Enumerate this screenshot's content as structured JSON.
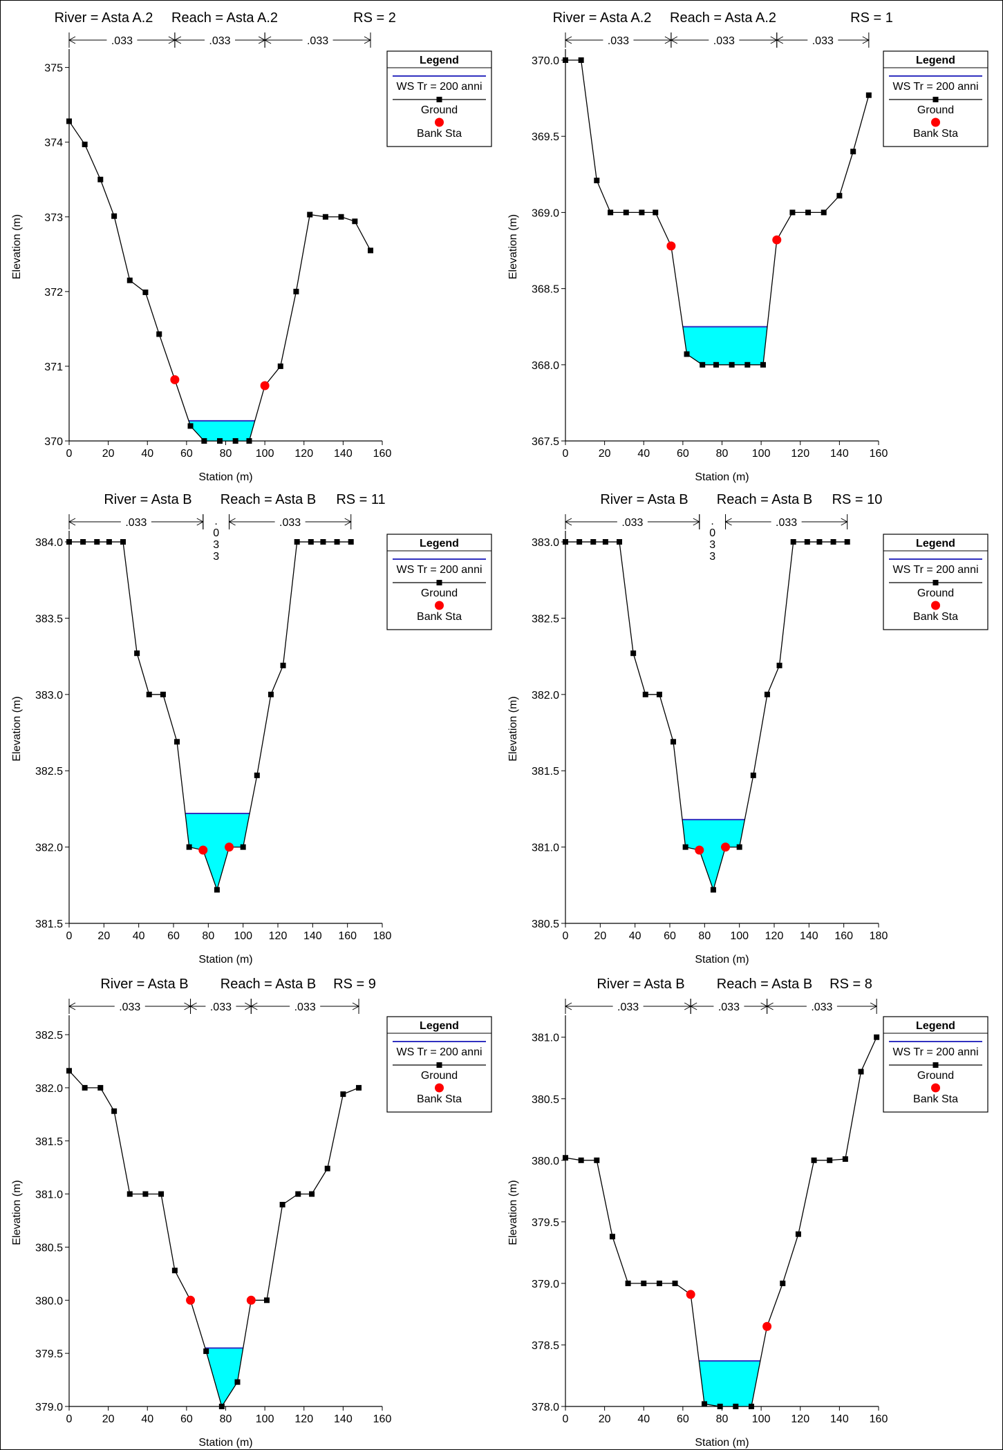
{
  "legend": {
    "title": "Legend",
    "items": [
      {
        "label": "WS Tr = 200 anni",
        "kind": "line",
        "color": "#3030c0"
      },
      {
        "label": "Ground",
        "kind": "line-marker",
        "color": "#000000"
      },
      {
        "label": "Bank Sta",
        "kind": "dot",
        "color": "#ff0000"
      }
    ]
  },
  "colors": {
    "water": "#00ffff",
    "ws_line": "#3030c0",
    "ground": "#000000",
    "bank": "#ff0000"
  },
  "chart_data": [
    {
      "type": "line",
      "title_parts": [
        "River = Asta A.2",
        "Reach = Asta A.2",
        "RS = 2"
      ],
      "xlabel": "Station (m)",
      "ylabel": "Elevation (m)",
      "xlim": [
        0,
        160
      ],
      "ylim": [
        370,
        375.2
      ],
      "xticks": [
        0,
        20,
        40,
        60,
        80,
        100,
        120,
        140,
        160
      ],
      "yticks": [
        370,
        371,
        372,
        373,
        374,
        375
      ],
      "ytick_decimals": 0,
      "ground": [
        [
          0,
          374.28
        ],
        [
          8,
          373.97
        ],
        [
          16,
          373.5
        ],
        [
          23,
          373.01
        ],
        [
          31,
          372.15
        ],
        [
          39,
          371.99
        ],
        [
          46,
          371.43
        ],
        [
          54,
          370.82
        ],
        [
          62,
          370.2
        ],
        [
          69,
          370.0
        ],
        [
          77,
          370.0
        ],
        [
          85,
          370.0
        ],
        [
          92,
          370.0
        ],
        [
          100,
          370.74
        ],
        [
          108,
          371.0
        ],
        [
          116,
          372.0
        ],
        [
          123,
          373.03
        ],
        [
          131,
          373.0
        ],
        [
          139,
          373.0
        ],
        [
          146,
          372.94
        ],
        [
          154,
          372.55
        ]
      ],
      "bank": [
        [
          54,
          370.82
        ],
        [
          100,
          370.74
        ]
      ],
      "ws": 370.27,
      "manning": [
        {
          "label": ".033",
          "from": 0,
          "to": 54,
          "vertical": false
        },
        {
          "label": ".033",
          "from": 54,
          "to": 100,
          "vertical": false
        },
        {
          "label": ".033",
          "from": 100,
          "to": 154,
          "vertical": false
        }
      ]
    },
    {
      "type": "line",
      "title_parts": [
        "River = Asta A.2",
        "Reach = Asta A.2",
        "RS = 1"
      ],
      "xlabel": "Station (m)",
      "ylabel": "Elevation (m)",
      "xlim": [
        0,
        160
      ],
      "ylim": [
        367.5,
        370.05
      ],
      "xticks": [
        0,
        20,
        40,
        60,
        80,
        100,
        120,
        140,
        160
      ],
      "yticks": [
        367.5,
        368.0,
        368.5,
        369.0,
        369.5,
        370.0
      ],
      "ytick_decimals": 1,
      "ground": [
        [
          0,
          370.0
        ],
        [
          8,
          370.0
        ],
        [
          16,
          369.21
        ],
        [
          23,
          369.0
        ],
        [
          31,
          369.0
        ],
        [
          39,
          369.0
        ],
        [
          46,
          369.0
        ],
        [
          54,
          368.78
        ],
        [
          62,
          368.07
        ],
        [
          70,
          368.0
        ],
        [
          77,
          368.0
        ],
        [
          85,
          368.0
        ],
        [
          93,
          368.0
        ],
        [
          101,
          368.0
        ],
        [
          108,
          368.82
        ],
        [
          116,
          369.0
        ],
        [
          124,
          369.0
        ],
        [
          132,
          369.0
        ],
        [
          140,
          369.11
        ],
        [
          147,
          369.4
        ],
        [
          155,
          369.77
        ]
      ],
      "bank": [
        [
          54,
          368.78
        ],
        [
          108,
          368.82
        ]
      ],
      "ws": 368.25,
      "manning": [
        {
          "label": ".033",
          "from": 0,
          "to": 54,
          "vertical": false
        },
        {
          "label": ".033",
          "from": 54,
          "to": 108,
          "vertical": false
        },
        {
          "label": ".033",
          "from": 108,
          "to": 155,
          "vertical": false
        }
      ]
    },
    {
      "type": "line",
      "title_parts": [
        "River = Asta B",
        "Reach = Asta B",
        "RS = 11"
      ],
      "xlabel": "Station (m)",
      "ylabel": "Elevation (m)",
      "xlim": [
        0,
        180
      ],
      "ylim": [
        381.5,
        384.05
      ],
      "xticks": [
        0,
        20,
        40,
        60,
        80,
        100,
        120,
        140,
        160,
        180
      ],
      "yticks": [
        381.5,
        382.0,
        382.5,
        383.0,
        383.5,
        384.0
      ],
      "ytick_decimals": 1,
      "ground": [
        [
          0,
          384.0
        ],
        [
          8,
          384.0
        ],
        [
          16,
          384.0
        ],
        [
          23,
          384.0
        ],
        [
          31,
          384.0
        ],
        [
          39,
          383.27
        ],
        [
          46,
          383.0
        ],
        [
          54,
          383.0
        ],
        [
          62,
          382.69
        ],
        [
          69,
          382.0
        ],
        [
          77,
          381.98
        ],
        [
          85,
          381.72
        ],
        [
          92,
          382.0
        ],
        [
          100,
          382.0
        ],
        [
          108,
          382.47
        ],
        [
          116,
          383.0
        ],
        [
          123,
          383.19
        ],
        [
          131,
          384.0
        ],
        [
          139,
          384.0
        ],
        [
          146,
          384.0
        ],
        [
          154,
          384.0
        ],
        [
          162,
          384.0
        ]
      ],
      "bank": [
        [
          77,
          381.98
        ],
        [
          92,
          382.0
        ]
      ],
      "ws": 382.22,
      "manning": [
        {
          "label": ".033",
          "from": 0,
          "to": 77,
          "vertical": false
        },
        {
          "label": ".033",
          "from": 77,
          "to": 92,
          "vertical": true
        },
        {
          "label": ".033",
          "from": 92,
          "to": 162,
          "vertical": false
        }
      ]
    },
    {
      "type": "line",
      "title_parts": [
        "River = Asta B",
        "Reach = Asta B",
        "RS = 10"
      ],
      "xlabel": "Station (m)",
      "ylabel": "Elevation (m)",
      "xlim": [
        0,
        180
      ],
      "ylim": [
        380.5,
        383.05
      ],
      "xticks": [
        0,
        20,
        40,
        60,
        80,
        100,
        120,
        140,
        160,
        180
      ],
      "yticks": [
        380.5,
        381.0,
        381.5,
        382.0,
        382.5,
        383.0
      ],
      "ytick_decimals": 1,
      "ground": [
        [
          0,
          383.0
        ],
        [
          8,
          383.0
        ],
        [
          16,
          383.0
        ],
        [
          23,
          383.0
        ],
        [
          31,
          383.0
        ],
        [
          39,
          382.27
        ],
        [
          46,
          382.0
        ],
        [
          54,
          382.0
        ],
        [
          62,
          381.69
        ],
        [
          69,
          381.0
        ],
        [
          77,
          380.98
        ],
        [
          85,
          380.72
        ],
        [
          92,
          381.0
        ],
        [
          100,
          381.0
        ],
        [
          108,
          381.47
        ],
        [
          116,
          382.0
        ],
        [
          123,
          382.19
        ],
        [
          131,
          383.0
        ],
        [
          139,
          383.0
        ],
        [
          146,
          383.0
        ],
        [
          154,
          383.0
        ],
        [
          162,
          383.0
        ]
      ],
      "bank": [
        [
          77,
          380.98
        ],
        [
          92,
          381.0
        ]
      ],
      "ws": 381.18,
      "manning": [
        {
          "label": ".033",
          "from": 0,
          "to": 77,
          "vertical": false
        },
        {
          "label": ".033",
          "from": 77,
          "to": 92,
          "vertical": true
        },
        {
          "label": ".033",
          "from": 92,
          "to": 162,
          "vertical": false
        }
      ]
    },
    {
      "type": "line",
      "title_parts": [
        "River = Asta B",
        "Reach = Asta B",
        "RS = 9"
      ],
      "xlabel": "Station (m)",
      "ylabel": "Elevation (m)",
      "xlim": [
        0,
        160
      ],
      "ylim": [
        379.0,
        382.65
      ],
      "xticks": [
        0,
        20,
        40,
        60,
        80,
        100,
        120,
        140,
        160
      ],
      "yticks": [
        379.0,
        379.5,
        380.0,
        380.5,
        381.0,
        381.5,
        382.0,
        382.5
      ],
      "ytick_decimals": 1,
      "ground": [
        [
          0,
          382.16
        ],
        [
          8,
          382.0
        ],
        [
          16,
          382.0
        ],
        [
          23,
          381.78
        ],
        [
          31,
          381.0
        ],
        [
          39,
          381.0
        ],
        [
          47,
          381.0
        ],
        [
          54,
          380.28
        ],
        [
          62,
          380.0
        ],
        [
          70,
          379.52
        ],
        [
          78,
          379.0
        ],
        [
          86,
          379.23
        ],
        [
          93,
          380.0
        ],
        [
          101,
          380.0
        ],
        [
          109,
          380.9
        ],
        [
          117,
          381.0
        ],
        [
          124,
          381.0
        ],
        [
          132,
          381.24
        ],
        [
          140,
          381.94
        ],
        [
          148,
          382.0
        ]
      ],
      "bank": [
        [
          62,
          380.0
        ],
        [
          93,
          380.0
        ]
      ],
      "ws": 379.55,
      "manning": [
        {
          "label": ".033",
          "from": 0,
          "to": 62,
          "vertical": false
        },
        {
          "label": ".033",
          "from": 62,
          "to": 93,
          "vertical": false
        },
        {
          "label": ".033",
          "from": 93,
          "to": 148,
          "vertical": false
        }
      ]
    },
    {
      "type": "line",
      "title_parts": [
        "River = Asta B",
        "Reach = Asta B",
        "RS = 8"
      ],
      "xlabel": "Station (m)",
      "ylabel": "Elevation (m)",
      "xlim": [
        0,
        160
      ],
      "ylim": [
        378.0,
        381.15
      ],
      "xticks": [
        0,
        20,
        40,
        60,
        80,
        100,
        120,
        140,
        160
      ],
      "yticks": [
        378.0,
        378.5,
        379.0,
        379.5,
        380.0,
        380.5,
        381.0
      ],
      "ytick_decimals": 1,
      "ground": [
        [
          0,
          380.02
        ],
        [
          8,
          380.0
        ],
        [
          16,
          380.0
        ],
        [
          24,
          379.38
        ],
        [
          32,
          379.0
        ],
        [
          40,
          379.0
        ],
        [
          48,
          379.0
        ],
        [
          56,
          379.0
        ],
        [
          64,
          378.91
        ],
        [
          71,
          378.02
        ],
        [
          79,
          378.0
        ],
        [
          87,
          378.0
        ],
        [
          95,
          378.0
        ],
        [
          103,
          378.65
        ],
        [
          111,
          379.0
        ],
        [
          119,
          379.4
        ],
        [
          127,
          380.0
        ],
        [
          135,
          380.0
        ],
        [
          143,
          380.01
        ],
        [
          151,
          380.72
        ],
        [
          159,
          381.0
        ]
      ],
      "bank": [
        [
          64,
          378.91
        ],
        [
          103,
          378.65
        ]
      ],
      "ws": 378.37,
      "manning": [
        {
          "label": ".033",
          "from": 0,
          "to": 64,
          "vertical": false
        },
        {
          "label": ".033",
          "from": 64,
          "to": 103,
          "vertical": false
        },
        {
          "label": ".033",
          "from": 103,
          "to": 159,
          "vertical": false
        }
      ]
    }
  ]
}
